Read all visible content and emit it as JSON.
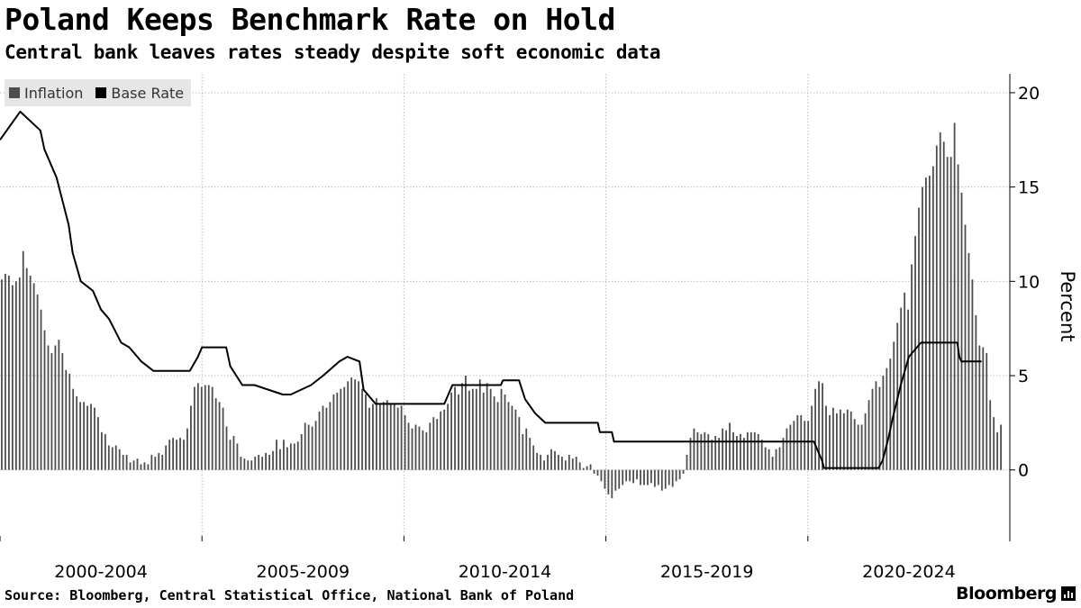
{
  "header": {
    "title": "Poland Keeps Benchmark Rate on Hold",
    "subtitle": "Central bank leaves rates steady despite soft economic data"
  },
  "footer": {
    "source": "Source: Bloomberg, Central Statistical Office, National Bank of Poland",
    "brand": "Bloomberg"
  },
  "colors": {
    "inflation": "#4d4d4d",
    "base_rate": "#000000",
    "grid": "#bdbdbd",
    "legend_bg": "#e6e6e6"
  },
  "chart_data": {
    "type": "bar",
    "title": "Poland Keeps Benchmark Rate on Hold",
    "subtitle": "Central bank leaves rates steady despite soft economic data",
    "ylabel": "Percent",
    "xlabel": "",
    "ylim": [
      -3.5,
      21
    ],
    "yticks": [
      20,
      15,
      10,
      5,
      0
    ],
    "x_range": [
      2000.0,
      2025.0
    ],
    "x_tick_positions": [
      2000.0,
      2005.0,
      2010.0,
      2015.0,
      2020.0,
      2025.0
    ],
    "x_period_labels": [
      {
        "label": "2000-2004",
        "center": 2002.5
      },
      {
        "label": "2005-2009",
        "center": 2007.5
      },
      {
        "label": "2010-2014",
        "center": 2012.5
      },
      {
        "label": "2015-2019",
        "center": 2017.5
      },
      {
        "label": "2020-2024",
        "center": 2022.5
      }
    ],
    "grid": true,
    "legend": {
      "placement": "top-left"
    },
    "series": [
      {
        "name": "Inflation",
        "type": "bar",
        "frequency": "monthly",
        "start": 2000.0,
        "values": [
          10.1,
          10.4,
          10.3,
          9.8,
          10.0,
          10.2,
          11.6,
          10.7,
          10.3,
          9.9,
          9.3,
          8.5,
          7.4,
          6.6,
          6.2,
          6.6,
          6.9,
          6.2,
          5.3,
          5.1,
          4.3,
          3.9,
          3.6,
          3.6,
          3.4,
          3.5,
          3.3,
          2.8,
          2.0,
          1.9,
          1.3,
          1.2,
          1.3,
          1.1,
          0.8,
          0.8,
          0.4,
          0.5,
          0.6,
          0.3,
          0.4,
          0.3,
          0.8,
          0.7,
          0.9,
          0.8,
          1.3,
          1.6,
          1.7,
          1.6,
          1.7,
          1.6,
          2.2,
          3.4,
          4.4,
          4.6,
          4.4,
          4.5,
          4.5,
          4.4,
          3.8,
          3.6,
          3.3,
          2.3,
          1.6,
          1.8,
          1.4,
          0.7,
          0.6,
          0.5,
          0.5,
          0.7,
          0.8,
          0.7,
          0.9,
          0.8,
          1.0,
          1.6,
          1.1,
          1.6,
          1.2,
          1.4,
          1.4,
          1.5,
          1.9,
          2.5,
          2.4,
          2.3,
          2.6,
          3.1,
          3.4,
          3.3,
          3.6,
          4.0,
          4.1,
          4.3,
          4.4,
          4.7,
          4.9,
          4.8,
          4.7,
          4.3,
          4.0,
          3.3,
          3.5,
          3.8,
          3.5,
          3.6,
          3.7,
          3.5,
          3.5,
          3.3,
          3.4,
          2.9,
          2.5,
          2.2,
          2.4,
          2.3,
          2.1,
          2.0,
          2.5,
          2.8,
          2.7,
          3.1,
          3.2,
          3.5,
          4.1,
          4.4,
          4.0,
          4.6,
          5.0,
          4.2,
          4.3,
          4.3,
          4.8,
          4.1,
          4.6,
          4.3,
          3.9,
          3.6,
          4.3,
          4.0,
          3.6,
          3.4,
          3.2,
          2.8,
          1.9,
          2.2,
          1.7,
          1.3,
          0.9,
          0.8,
          0.5,
          0.8,
          1.1,
          1.0,
          0.8,
          0.7,
          0.5,
          0.8,
          0.6,
          0.7,
          0.4,
          0.1,
          0.2,
          0.3,
          -0.2,
          -0.3,
          -0.6,
          -1.0,
          -1.3,
          -1.5,
          -1.1,
          -1.0,
          -0.8,
          -0.6,
          -0.6,
          -0.7,
          -0.5,
          -0.8,
          -0.8,
          -0.8,
          -0.7,
          -0.9,
          -0.8,
          -1.1,
          -1.0,
          -0.8,
          -0.9,
          -0.6,
          -0.5,
          -0.2,
          0.8,
          1.7,
          2.2,
          2.0,
          1.9,
          2.0,
          1.9,
          1.6,
          1.8,
          1.7,
          2.2,
          2.1,
          2.5,
          2.0,
          1.8,
          1.9,
          1.7,
          2.0,
          2.0,
          2.0,
          1.9,
          1.6,
          1.2,
          1.1,
          0.7,
          1.1,
          1.2,
          1.7,
          2.2,
          2.4,
          2.6,
          2.9,
          2.9,
          2.6,
          2.6,
          3.4,
          4.3,
          4.7,
          4.6,
          3.4,
          2.9,
          3.3,
          3.0,
          3.2,
          3.0,
          3.2,
          3.1,
          2.7,
          2.4,
          2.4,
          3.0,
          3.7,
          4.3,
          4.7,
          4.4,
          5.0,
          5.4,
          5.9,
          6.8,
          7.8,
          8.6,
          9.4,
          8.5,
          10.9,
          12.4,
          13.9,
          15.0,
          15.5,
          15.6,
          16.1,
          17.2,
          17.9,
          17.4,
          16.6,
          16.6,
          18.4,
          16.2,
          14.7,
          13.0,
          11.5,
          10.1,
          8.2,
          6.6,
          6.5,
          6.2,
          3.7,
          2.8,
          2.0,
          2.4
        ]
      },
      {
        "name": "Base Rate",
        "type": "line",
        "points": [
          [
            2000.0,
            17.5
          ],
          [
            2000.5,
            19.0
          ],
          [
            2001.0,
            18.0
          ],
          [
            2001.1,
            17.0
          ],
          [
            2001.4,
            15.5
          ],
          [
            2001.7,
            13.0
          ],
          [
            2001.8,
            11.5
          ],
          [
            2002.0,
            10.0
          ],
          [
            2002.3,
            9.5
          ],
          [
            2002.5,
            8.5
          ],
          [
            2002.7,
            8.0
          ],
          [
            2003.0,
            6.75
          ],
          [
            2003.2,
            6.5
          ],
          [
            2003.5,
            5.75
          ],
          [
            2003.8,
            5.25
          ],
          [
            2004.7,
            5.25
          ],
          [
            2004.9,
            6.0
          ],
          [
            2005.0,
            6.5
          ],
          [
            2005.2,
            6.5
          ],
          [
            2005.6,
            6.5
          ],
          [
            2005.7,
            5.5
          ],
          [
            2006.0,
            4.5
          ],
          [
            2006.3,
            4.5
          ],
          [
            2007.0,
            4.0
          ],
          [
            2007.2,
            4.0
          ],
          [
            2007.7,
            4.5
          ],
          [
            2008.0,
            5.0
          ],
          [
            2008.4,
            5.75
          ],
          [
            2008.6,
            6.0
          ],
          [
            2008.9,
            5.75
          ],
          [
            2009.0,
            4.25
          ],
          [
            2009.3,
            3.5
          ],
          [
            2011.0,
            3.5
          ],
          [
            2011.2,
            4.5
          ],
          [
            2012.4,
            4.5
          ],
          [
            2012.45,
            4.75
          ],
          [
            2012.85,
            4.75
          ],
          [
            2013.0,
            3.75
          ],
          [
            2013.25,
            3.0
          ],
          [
            2013.5,
            2.5
          ],
          [
            2014.8,
            2.5
          ],
          [
            2014.85,
            2.0
          ],
          [
            2015.15,
            2.0
          ],
          [
            2015.2,
            1.5
          ],
          [
            2020.15,
            1.5
          ],
          [
            2020.25,
            1.0
          ],
          [
            2020.35,
            0.5
          ],
          [
            2020.4,
            0.1
          ],
          [
            2021.75,
            0.1
          ],
          [
            2021.85,
            0.5
          ],
          [
            2022.0,
            1.75
          ],
          [
            2022.1,
            2.75
          ],
          [
            2022.3,
            4.5
          ],
          [
            2022.5,
            6.0
          ],
          [
            2022.7,
            6.5
          ],
          [
            2022.8,
            6.75
          ],
          [
            2023.7,
            6.75
          ],
          [
            2023.75,
            6.0
          ],
          [
            2023.8,
            5.75
          ],
          [
            2024.3,
            5.75
          ]
        ]
      }
    ]
  }
}
